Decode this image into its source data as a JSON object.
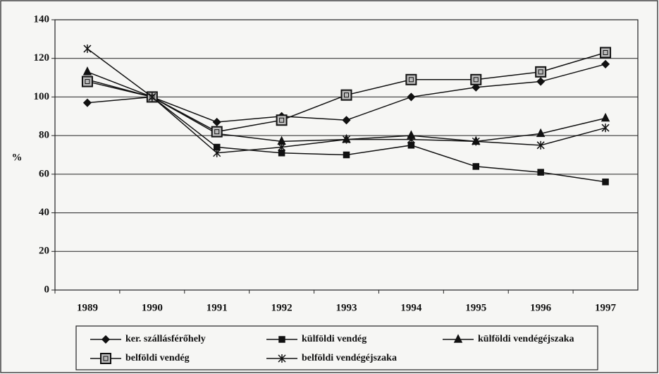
{
  "chart_data": {
    "type": "line",
    "y_label": "%",
    "categories": [
      "1989",
      "1990",
      "1991",
      "1992",
      "1993",
      "1994",
      "1995",
      "1996",
      "1997"
    ],
    "series": [
      {
        "name": "ker. szállásférőhely",
        "color": "#111111",
        "marker": "diamond",
        "values": [
          97,
          100,
          87,
          90,
          88,
          100,
          105,
          108,
          117
        ]
      },
      {
        "name": "külföldi vendég",
        "color": "#111111",
        "marker": "square",
        "values": [
          109,
          100,
          74,
          71,
          70,
          75,
          64,
          61,
          56
        ]
      },
      {
        "name": "külföldi vendégéjszaka",
        "color": "#111111",
        "marker": "triangle",
        "values": [
          113,
          100,
          81,
          77,
          78,
          80,
          77,
          81,
          89
        ]
      },
      {
        "name": "belföldi vendég",
        "color": "#111111",
        "marker": "boxed-square",
        "values": [
          108,
          100,
          82,
          88,
          101,
          109,
          109,
          113,
          123
        ]
      },
      {
        "name": "belföldi vendégéjszaka",
        "color": "#111111",
        "marker": "asterisk",
        "values": [
          125,
          100,
          71,
          74,
          78,
          78,
          77,
          75,
          84
        ]
      }
    ],
    "ylim": [
      0,
      140
    ],
    "yticks": [
      0,
      20,
      40,
      60,
      80,
      100,
      120,
      140
    ],
    "grid": true,
    "legend": "bottom"
  }
}
